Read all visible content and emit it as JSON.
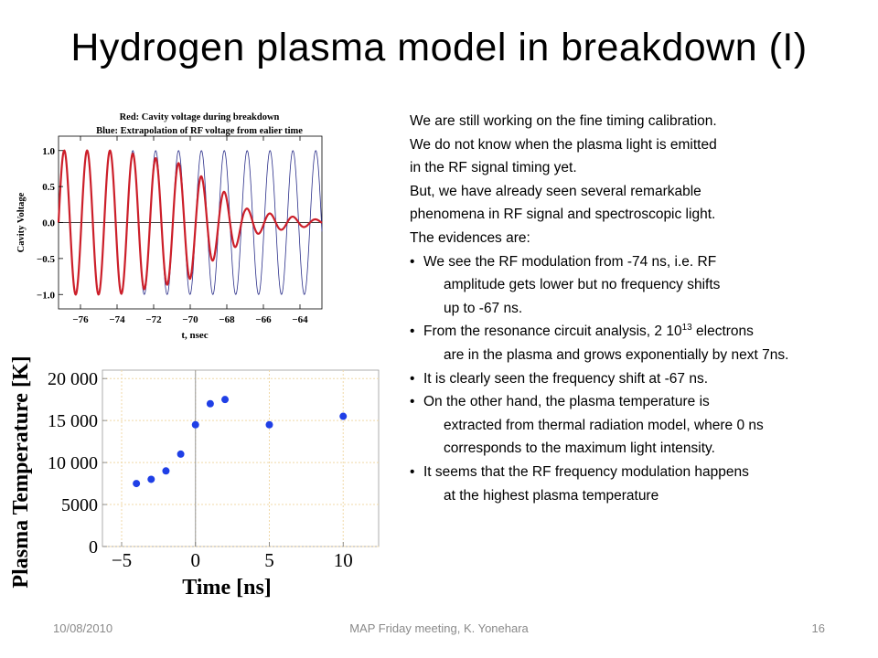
{
  "slide": {
    "title": "Hydrogen plasma model in breakdown (I)"
  },
  "body": {
    "paragraphs": [
      "We are still working on the fine timing calibration.",
      "We do not know when the plasma light is emitted",
      "in the RF signal timing yet.",
      "But, we have already seen several remarkable",
      "phenomena in RF signal and spectroscopic light.",
      "The evidences are:"
    ],
    "bullets": [
      {
        "lines": [
          "We see the RF modulation from -74 ns, i.e. RF",
          "amplitude gets lower but no frequency shifts",
          "up to -67 ns."
        ]
      },
      {
        "lines": [
          "From the resonance circuit analysis, 2 10",
          "are in the plasma and grows exponentially by next 7ns."
        ],
        "sup": "13",
        "after_sup": " electrons"
      },
      {
        "lines": [
          "It is clearly seen the frequency shift at -67 ns."
        ]
      },
      {
        "lines": [
          "On the other hand, the plasma temperature is",
          "extracted from thermal radiation model, where 0 ns",
          "corresponds to the maximum light intensity."
        ]
      },
      {
        "lines": [
          "It seems that the RF frequency modulation happens",
          "at the highest plasma temperature"
        ]
      }
    ]
  },
  "footer": {
    "date": "10/08/2010",
    "center": "MAP Friday meeting, K. Yonehara",
    "page": "16"
  },
  "chart_data": [
    {
      "type": "line",
      "title": "Red: Cavity voltage during breakdown",
      "subtitle": "Blue:  Extrapolation of RF voltage from ealier time",
      "xlabel": "t, nsec",
      "ylabel": "Cavity Voltage",
      "xlim": [
        -77.2,
        -62.8
      ],
      "ylim": [
        -1.2,
        1.2
      ],
      "xticks": [
        -76,
        -74,
        -72,
        -70,
        -68,
        -66,
        -64
      ],
      "xtick_labels": [
        "−76",
        "−74",
        "−72",
        "−70",
        "−68",
        "−66",
        "−64"
      ],
      "yticks": [
        1.0,
        0.5,
        0.0,
        -0.5,
        -1.0
      ],
      "ytick_labels": [
        "1.0",
        "0.5",
        "0.0",
        "−0.5",
        "−1.0"
      ],
      "frequency_ghz": 0.8,
      "series": [
        {
          "color": "#2b2f8a",
          "amplitude": 1.0,
          "x_range": [
            -77.2,
            -62.8
          ]
        },
        {
          "color": "#cc1f2a",
          "x_range": [
            -77.2,
            -62.4
          ],
          "envelope": {
            "x": [
              -77.2,
              -74,
              -71,
              -70,
              -69.3,
              -68.6,
              -68.1,
              -67.6,
              -67,
              -66,
              -65,
              -64,
              -63,
              -62.4
            ],
            "amp": [
              1.0,
              1.0,
              0.85,
              0.78,
              0.62,
              0.5,
              0.42,
              0.36,
              0.2,
              0.14,
              0.1,
              0.07,
              0.04,
              0.02
            ]
          }
        }
      ]
    },
    {
      "type": "scatter",
      "xlabel": "Time [ns]",
      "ylabel": "Plasma Temperature [K]",
      "xlim": [
        -6.3,
        12.4
      ],
      "ylim": [
        0,
        21000
      ],
      "xticks": [
        -5,
        0,
        5,
        10
      ],
      "xtick_labels": [
        "−5",
        "0",
        "5",
        "10"
      ],
      "yticks": [
        0,
        5000,
        10000,
        15000,
        20000
      ],
      "ytick_labels": [
        "0",
        "5000",
        "10 000",
        "15 000",
        "20 000"
      ],
      "grid": true,
      "point_color": "#1f3fe6",
      "series": [
        {
          "x": [
            -4,
            -3,
            -2,
            -1,
            0,
            1,
            2,
            5,
            10
          ],
          "y": [
            7500,
            8000,
            9000,
            11000,
            14500,
            17000,
            17500,
            14500,
            15500
          ]
        }
      ]
    }
  ]
}
